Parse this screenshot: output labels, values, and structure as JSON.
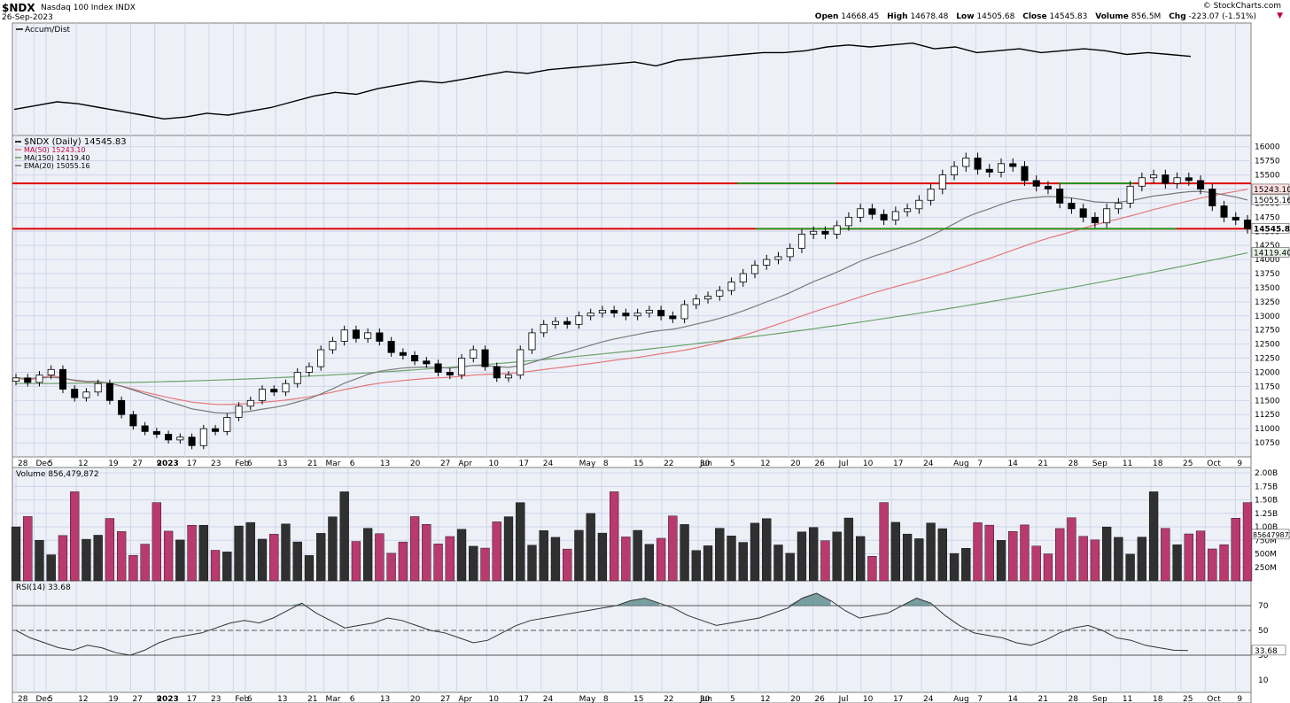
{
  "header": {
    "symbol": "$NDX",
    "name": "Nasdaq 100 Index",
    "exchange": "INDX",
    "date": "26-Sep-2023",
    "brand": "© StockCharts.com",
    "open_label": "Open",
    "open": "14668.45",
    "high_label": "High",
    "high": "14678.48",
    "low_label": "Low",
    "low": "14505.68",
    "close_label": "Close",
    "close": "14545.83",
    "volume_label": "Volume",
    "volume": "856.5M",
    "chg_label": "Chg",
    "chg": "-223.07 (-1.51%)",
    "chg_arrow": "▼"
  },
  "colors": {
    "panel_bg": "#eef0f8",
    "grid": "#cfd6ea",
    "up": "#ffffff",
    "down": "#000000",
    "vol_up": "#303030",
    "vol_down": "#b83a6e",
    "ma50": "#e47878",
    "ma150": "#6aa36a",
    "ema20": "#7a7a7a",
    "support_green": "#1a9a1a",
    "resistance_red": "#e00000",
    "rsi_fill": "#5a8a8a"
  },
  "chart_data": [
    {
      "type": "line",
      "panel": "accum-dist",
      "legend": "Accum/Dist",
      "series": [
        {
          "name": "Accum/Dist",
          "values": [
            0.2,
            0.24,
            0.28,
            0.26,
            0.22,
            0.18,
            0.14,
            0.1,
            0.12,
            0.16,
            0.14,
            0.18,
            0.22,
            0.28,
            0.34,
            0.38,
            0.36,
            0.42,
            0.46,
            0.5,
            0.48,
            0.52,
            0.56,
            0.6,
            0.58,
            0.62,
            0.64,
            0.66,
            0.68,
            0.7,
            0.66,
            0.72,
            0.74,
            0.76,
            0.78,
            0.8,
            0.8,
            0.82,
            0.86,
            0.88,
            0.86,
            0.88,
            0.9,
            0.84,
            0.86,
            0.8,
            0.82,
            0.84,
            0.8,
            0.82,
            0.84,
            0.82,
            0.78,
            0.8,
            0.78,
            0.76
          ]
        }
      ]
    },
    {
      "type": "candlestick",
      "panel": "price",
      "legend": [
        "$NDX (Daily) 14545.83",
        "MA(50) 15243.10",
        "MA(150) 14119.40",
        "EMA(20) 15055.16"
      ],
      "ylim": [
        10500,
        16200
      ],
      "yticks": [
        16000,
        15750,
        15500,
        15250,
        15000,
        14750,
        14500,
        14250,
        14000,
        13750,
        13500,
        13250,
        13000,
        12750,
        12500,
        12250,
        12000,
        11750,
        11500,
        11250,
        11000,
        10750
      ],
      "ytick_labels": [
        "16000",
        "15750",
        "15500",
        "15250",
        "15000",
        "14750",
        "14500",
        "14250",
        "14000",
        "13750",
        "13500",
        "13250",
        "13000",
        "12750",
        "12500",
        "12250",
        "12000",
        "11750",
        "11500",
        "11250",
        "11000",
        "10750"
      ],
      "x_labels": [
        "28",
        "Dec",
        "5",
        "12",
        "19",
        "27",
        "2023",
        "9",
        "17",
        "23",
        "Feb",
        "6",
        "13",
        "21",
        "Mar",
        "6",
        "13",
        "20",
        "27",
        "Apr",
        "10",
        "17",
        "24",
        "May",
        "8",
        "15",
        "22",
        "30",
        "Jun",
        "5",
        "12",
        "20",
        "26",
        "Jul",
        "10",
        "17",
        "24",
        "Aug",
        "7",
        "14",
        "21",
        "28",
        "Sep",
        "11",
        "18",
        "25",
        "Oct",
        "9"
      ],
      "x_label_trading_index": [
        0,
        3,
        5,
        10,
        15,
        19,
        23,
        23,
        28,
        32,
        36,
        38,
        43,
        48,
        51,
        55,
        60,
        65,
        70,
        73,
        78,
        83,
        87,
        93,
        97,
        102,
        107,
        113,
        113,
        118,
        123,
        128,
        132,
        136,
        140,
        145,
        150,
        155,
        159,
        164,
        169,
        174,
        178,
        183,
        188,
        193,
        197,
        202
      ],
      "close": [
        11900,
        11820,
        11950,
        12050,
        11700,
        11550,
        11650,
        11800,
        11500,
        11250,
        11050,
        10950,
        10900,
        10800,
        10850,
        10700,
        11000,
        10950,
        11200,
        11400,
        11500,
        11700,
        11650,
        11800,
        12000,
        12100,
        12400,
        12550,
        12750,
        12600,
        12700,
        12550,
        12350,
        12300,
        12200,
        12150,
        12000,
        11950,
        12250,
        12400,
        12100,
        11900,
        11950,
        12400,
        12700,
        12850,
        12900,
        12850,
        13000,
        13050,
        13100,
        13050,
        13000,
        13050,
        13100,
        13000,
        12950,
        13200,
        13300,
        13350,
        13450,
        13600,
        13750,
        13900,
        14000,
        14050,
        14200,
        14450,
        14500,
        14450,
        14600,
        14750,
        14900,
        14800,
        14700,
        14850,
        14900,
        15050,
        15250,
        15500,
        15650,
        15800,
        15600,
        15550,
        15700,
        15650,
        15400,
        15300,
        15250,
        15000,
        14900,
        14750,
        14650,
        14900,
        15000,
        15300,
        15450,
        15500,
        15350,
        15450,
        15400,
        15250,
        14950,
        14750,
        14700,
        14545.83
      ],
      "ma50_end": 15243.1,
      "ma150_end": 14119.4,
      "ema20_end": 15055.16,
      "hlines": [
        {
          "value": 15350,
          "color": "resistance_red"
        },
        {
          "value": 14545.83,
          "color": "resistance_red"
        }
      ],
      "support_lines": [
        {
          "value": 15350,
          "from": 0.585,
          "to": 0.665
        },
        {
          "value": 14545.83,
          "from": 0.6,
          "to": 0.94
        },
        {
          "value": 15350,
          "from": 0.845,
          "to": 0.905
        }
      ],
      "price_tags": [
        "15243.10",
        "15055.16",
        "14545.83",
        "14119.40"
      ]
    },
    {
      "type": "bar",
      "panel": "volume",
      "legend": "Volume 856,479,872",
      "yticks": [
        "2.00B",
        "1.75B",
        "1.50B",
        "1.25B",
        "1.00B",
        "750M",
        "500M",
        "250M"
      ],
      "last_tag": "856479872"
    },
    {
      "type": "line",
      "panel": "rsi",
      "legend": "RSI(14) 33.68",
      "ylim": [
        0,
        90
      ],
      "yticks": [
        "70",
        "50",
        "30",
        "10"
      ],
      "levels": [
        70,
        50,
        30
      ],
      "values": [
        50,
        44,
        40,
        36,
        34,
        38,
        36,
        32,
        30,
        34,
        40,
        44,
        46,
        48,
        52,
        56,
        58,
        56,
        60,
        66,
        72,
        64,
        58,
        52,
        54,
        56,
        60,
        58,
        54,
        50,
        48,
        44,
        40,
        42,
        48,
        54,
        58,
        60,
        62,
        64,
        66,
        68,
        70,
        74,
        76,
        72,
        68,
        62,
        58,
        54,
        56,
        58,
        60,
        64,
        68,
        76,
        80,
        74,
        66,
        60,
        62,
        64,
        70,
        76,
        72,
        62,
        54,
        48,
        46,
        44,
        40,
        38,
        42,
        48,
        52,
        54,
        50,
        44,
        42,
        38,
        36,
        34,
        33.68
      ],
      "last_tag": "33.68"
    }
  ]
}
